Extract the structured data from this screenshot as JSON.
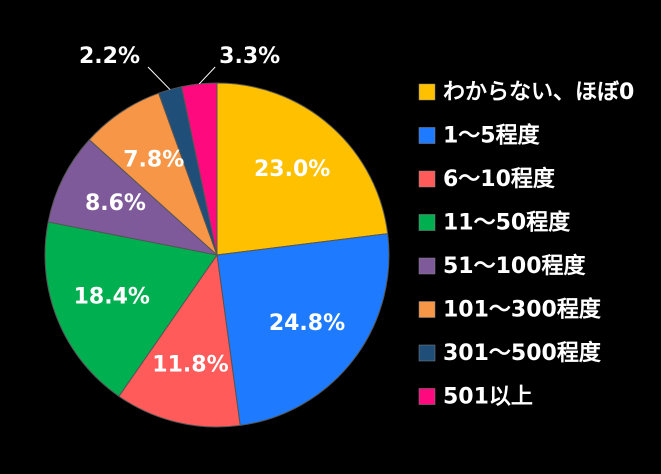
{
  "chart_data": {
    "type": "pie",
    "categories": [
      "わからない、ほぼ0",
      "1～5程度",
      "6～10程度",
      "11～50程度",
      "51～100程度",
      "101～300程度",
      "301～500程度",
      "501以上"
    ],
    "values": [
      23.0,
      24.8,
      11.8,
      18.4,
      8.6,
      7.8,
      2.2,
      3.3
    ],
    "value_labels": [
      "23.0%",
      "24.8%",
      "11.8%",
      "18.4%",
      "8.6%",
      "7.8%",
      "2.2%",
      "3.3%"
    ],
    "colors": [
      "#FFC000",
      "#1E7BFF",
      "#FF5B5B",
      "#00B050",
      "#7E5A9B",
      "#F79646",
      "#1F4E79",
      "#FF0A7E"
    ],
    "legend": "right"
  }
}
